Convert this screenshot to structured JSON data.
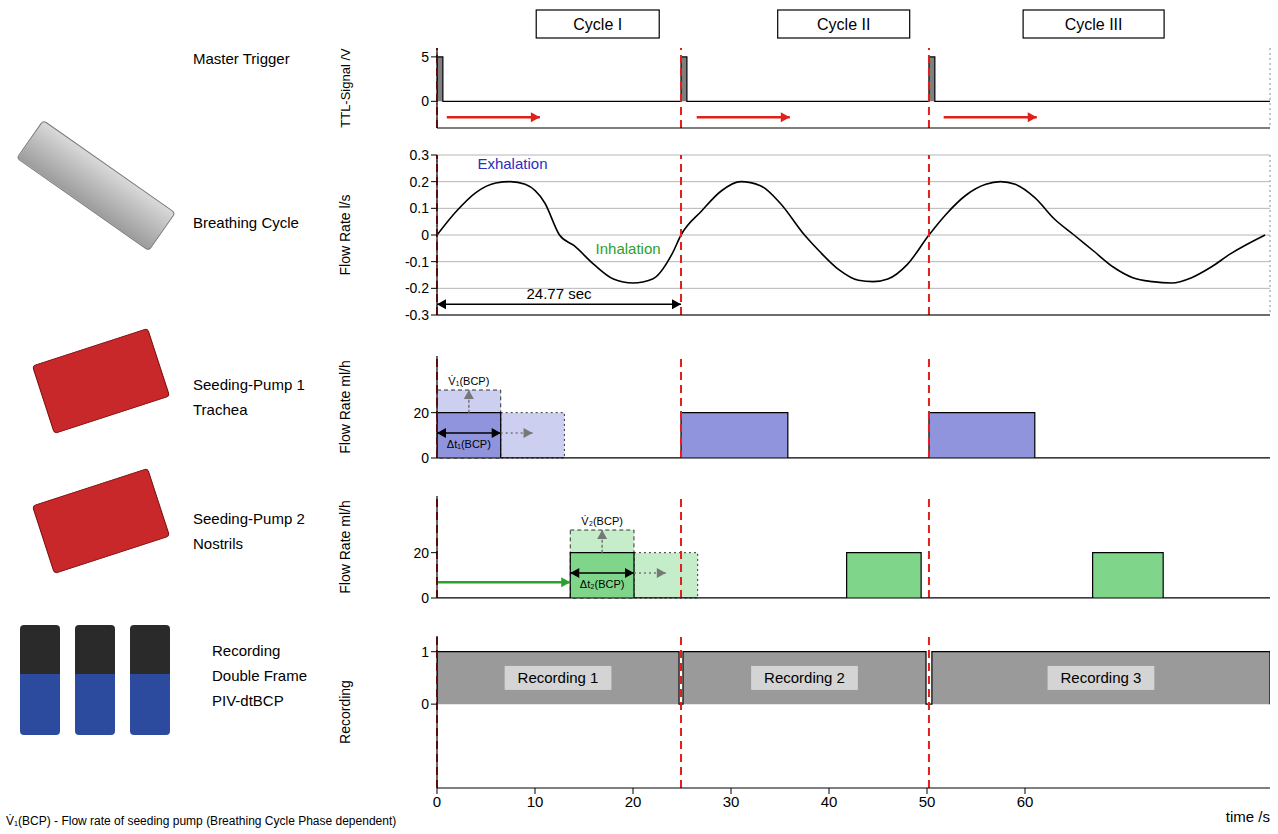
{
  "chart_data": [
    {
      "type": "step",
      "device_label": [
        "Master Trigger"
      ],
      "y_label": "TTL-Signal /V",
      "xlim": [
        0,
        85
      ],
      "xticks": [
        0,
        10,
        20,
        30,
        40,
        50,
        60,
        70,
        80
      ],
      "ylim": [
        -3,
        6
      ],
      "yticks": [
        0,
        5
      ],
      "grid": true,
      "tick_labels": "y",
      "color": "#7f7f7f",
      "pulses": [
        {
          "start": 0,
          "end": 0.6,
          "value": 5
        },
        {
          "start": 24.9,
          "end": 25.5,
          "value": 5
        },
        {
          "start": 50.2,
          "end": 50.8,
          "value": 5
        }
      ],
      "cycle_labels": [
        {
          "x": 16.4,
          "label": "Cycle I"
        },
        {
          "x": 41.5,
          "label": "Cycle II"
        },
        {
          "x": 67,
          "label": "Cycle III"
        }
      ],
      "arrows": [
        {
          "x0": 1,
          "x1": 10.5,
          "y": -1.8
        },
        {
          "x0": 26.5,
          "x1": 36,
          "y": -1.8
        },
        {
          "x0": 51.7,
          "x1": 61.2,
          "y": -1.8
        }
      ]
    },
    {
      "type": "line",
      "device_label": [
        "Breathing Cycle"
      ],
      "y_label": "Flow Rate l/s",
      "xlim": [
        0,
        85
      ],
      "xticks": [
        0,
        10,
        20,
        30,
        40,
        50,
        60,
        70,
        80
      ],
      "ylim": [
        -0.3,
        0.3
      ],
      "yticks": [
        -0.3,
        -0.2,
        -0.1,
        0,
        0.1,
        0.2,
        0.3
      ],
      "grid": true,
      "tick_labels": "y",
      "color": "#000000",
      "x": [
        0,
        2,
        4,
        6,
        7.5,
        9,
        11,
        12.5,
        14,
        16,
        18,
        20,
        22,
        24,
        24.9,
        27,
        29,
        31,
        33,
        35,
        37.5,
        39,
        41,
        43,
        44.5,
        46,
        48,
        50.2,
        52,
        54,
        56,
        57.5,
        59,
        61,
        63,
        65,
        67,
        69,
        71,
        73,
        75,
        77,
        79,
        81,
        84.5
      ],
      "values": [
        0,
        0.09,
        0.16,
        0.195,
        0.2,
        0.19,
        0.12,
        0,
        -0.04,
        -0.11,
        -0.165,
        -0.18,
        -0.165,
        -0.07,
        0,
        0.09,
        0.165,
        0.2,
        0.185,
        0.12,
        0,
        -0.06,
        -0.13,
        -0.17,
        -0.175,
        -0.165,
        -0.11,
        0,
        0.08,
        0.15,
        0.19,
        0.2,
        0.19,
        0.14,
        0.06,
        0,
        -0.06,
        -0.12,
        -0.16,
        -0.175,
        -0.18,
        -0.16,
        -0.12,
        -0.07,
        0
      ],
      "annotations": [
        {
          "label": "Exhalation",
          "x": 7.7,
          "y": 0.27
        },
        {
          "label": "Inhalation",
          "x": 19.5,
          "y": -0.05
        }
      ],
      "period": {
        "label": "24.77 sec",
        "start": 0,
        "end": 24.9,
        "y": -0.26
      }
    },
    {
      "type": "step",
      "device_label": [
        "Seeding-Pump 1",
        "Trachea"
      ],
      "y_label": "Flow Rate ml/h",
      "xlim": [
        0,
        85
      ],
      "xticks": [
        0,
        10,
        20,
        30,
        40,
        50,
        60,
        70,
        80
      ],
      "ylim": [
        0,
        45
      ],
      "yticks": [
        0,
        20
      ],
      "grid": false,
      "tick_labels": "y",
      "color": "#8f94dc",
      "pulses": [
        {
          "start": 0,
          "end": 6.5,
          "value": 20
        },
        {
          "start": 24.9,
          "end": 35.8,
          "value": 20
        },
        {
          "start": 50.2,
          "end": 61,
          "value": 20
        }
      ],
      "variation": {
        "start": 0,
        "end": 6.5,
        "value": 30,
        "label": "V̇₁(BCP)",
        "shifted_start": 6.5,
        "shifted_end": 13,
        "duration_label": "Δt₁(BCP)"
      }
    },
    {
      "type": "step",
      "device_label": [
        "Seeding-Pump 2",
        "Nostrils"
      ],
      "y_label": "Flow Rate ml/h",
      "xlim": [
        0,
        85
      ],
      "xticks": [
        0,
        10,
        20,
        30,
        40,
        50,
        60,
        70,
        80
      ],
      "ylim": [
        0,
        45
      ],
      "yticks": [
        0,
        20
      ],
      "grid": false,
      "tick_labels": "y",
      "color": "#7fd68a",
      "pulses": [
        {
          "start": 13.6,
          "end": 20.1,
          "value": 20
        },
        {
          "start": 41.8,
          "end": 49.4,
          "value": 20
        },
        {
          "start": 66.9,
          "end": 74.1,
          "value": 20
        }
      ],
      "variation": {
        "start": 13.6,
        "end": 20.1,
        "value": 30,
        "label": "V̇₂(BCP)",
        "shifted_start": 20.1,
        "shifted_end": 26.6,
        "duration_label": "Δt₂(BCP)"
      },
      "arrows": [
        {
          "x0": 0,
          "x1": 13.6,
          "y": 7
        }
      ]
    },
    {
      "type": "step",
      "device_label": [
        "Recording",
        "Double Frame",
        "PIV-dtBCP"
      ],
      "y_label": "Recording",
      "x_label": "time /s",
      "xlim": [
        0,
        85
      ],
      "xticks": [
        0,
        10,
        20,
        30,
        40,
        50,
        60
      ],
      "ylim": [
        -1.6,
        1.3
      ],
      "yticks": [
        0,
        1
      ],
      "grid": false,
      "tick_labels": true,
      "color": "#9a9a9a",
      "pulses": [
        {
          "start": 0,
          "end": 24.7,
          "value": 1
        },
        {
          "start": 25.1,
          "end": 49.9,
          "value": 1
        },
        {
          "start": 50.5,
          "end": 85,
          "value": 1
        }
      ],
      "labels": [
        "Recording 1",
        "Recording 2",
        "Recording 3"
      ]
    }
  ],
  "cycle_starts": [
    0,
    24.9,
    50.2
  ],
  "footnote": "V̇₁(BCP) - Flow rate of seeding pump (Breathing Cycle Phase dependent)"
}
